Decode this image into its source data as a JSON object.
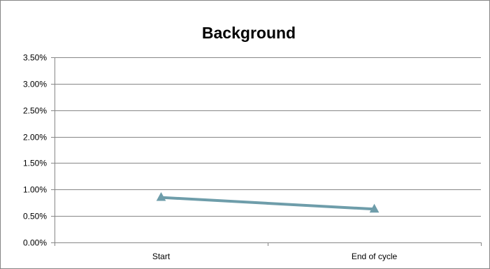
{
  "chart_data": {
    "type": "line",
    "title": "Background",
    "xlabel": "",
    "ylabel": "",
    "categories": [
      "Start",
      "End of cycle"
    ],
    "series": [
      {
        "values": [
          0.0085,
          0.0063
        ],
        "color": "#6E9DAA",
        "marker": "triangle"
      }
    ],
    "ylim": [
      0,
      0.035
    ],
    "y_ticks": [
      0,
      0.005,
      0.01,
      0.015,
      0.02,
      0.025,
      0.03,
      0.035
    ],
    "y_tick_labels": [
      "0.00%",
      "0.50%",
      "1.00%",
      "1.50%",
      "2.00%",
      "2.50%",
      "3.00%",
      "3.50%"
    ],
    "grid": true,
    "legend": "none"
  }
}
